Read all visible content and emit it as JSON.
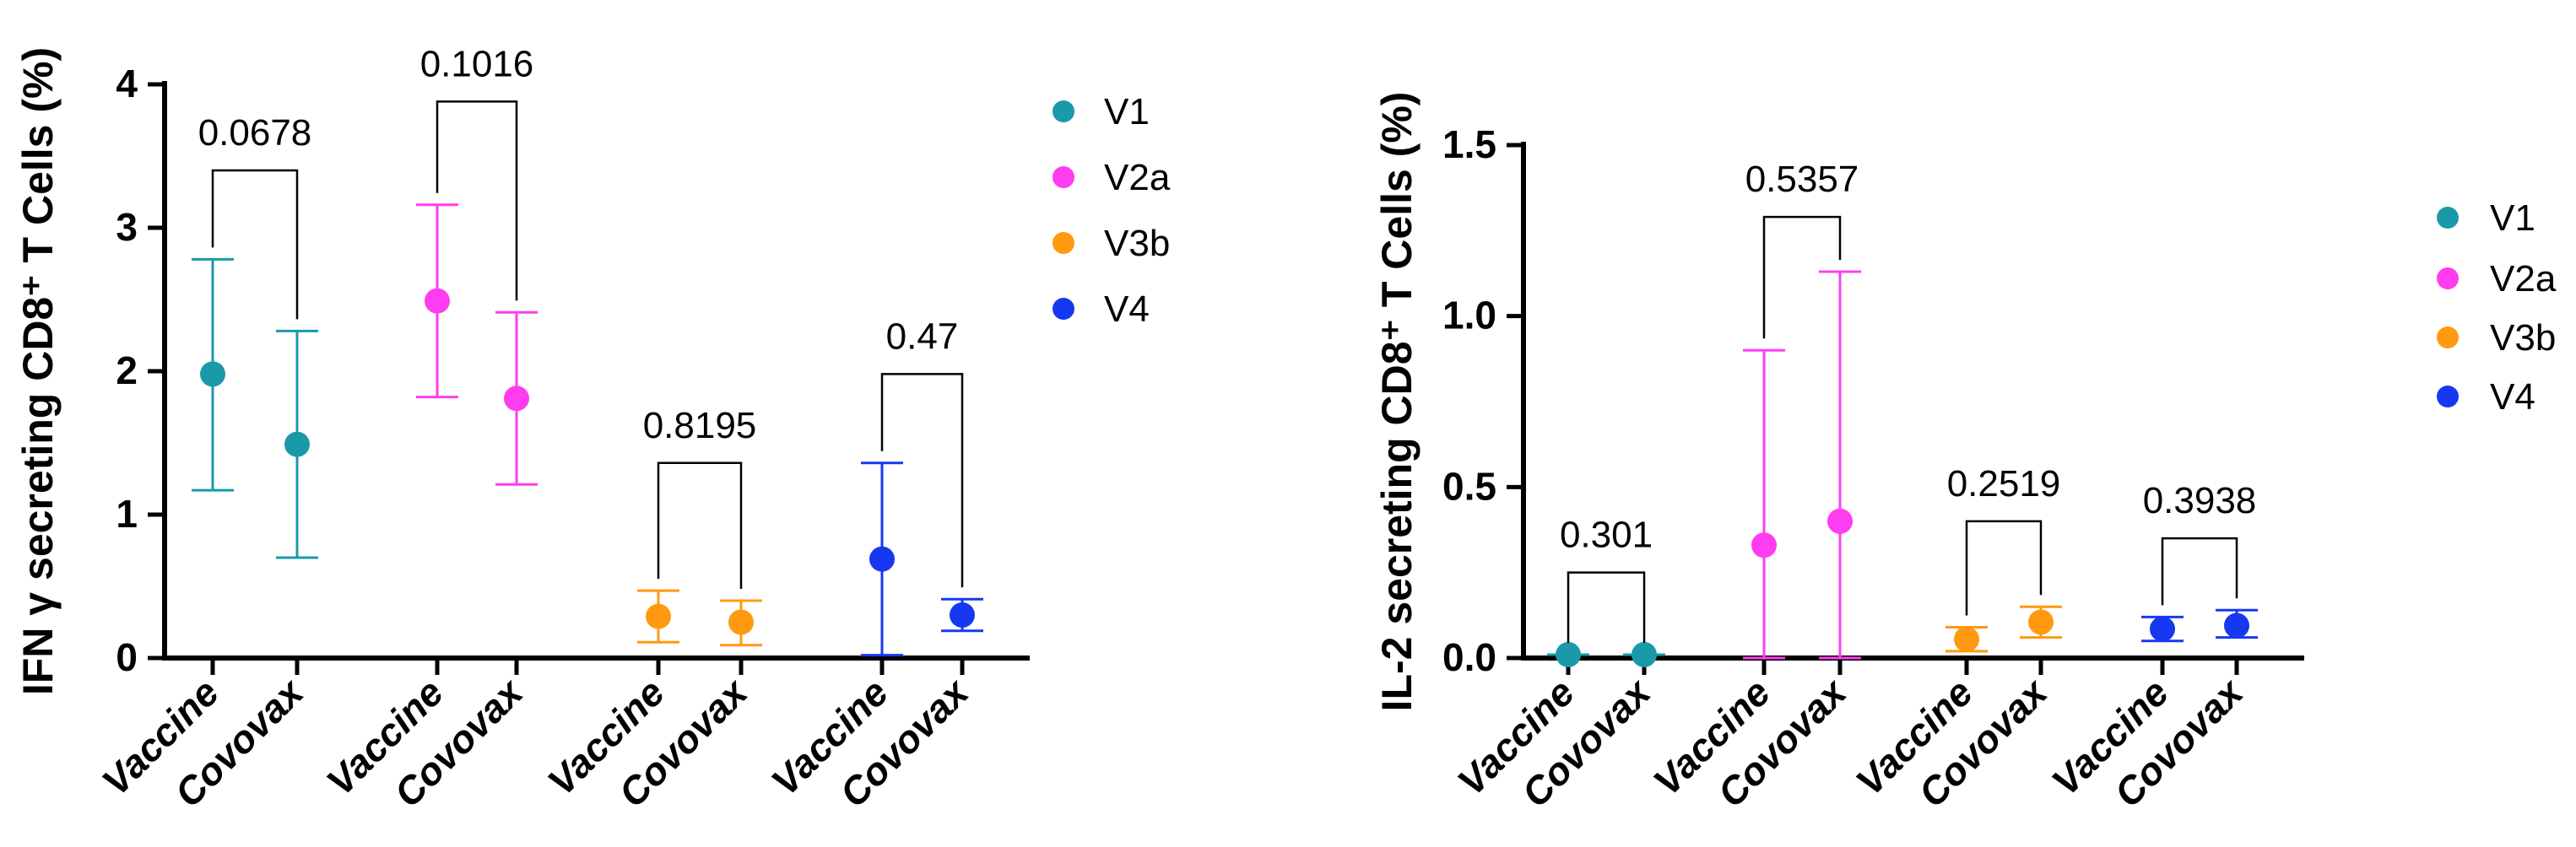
{
  "chart_data": [
    {
      "type": "scatter",
      "ylabel": "IFN γ secreting CD8⁺ T Cells (%)",
      "ylim": [
        0,
        4
      ],
      "yticks": [
        "0",
        "1",
        "2",
        "3",
        "4"
      ],
      "categories": [
        "Vaccine",
        "Covovax",
        "Vaccine",
        "Covovax",
        "Vaccine",
        "Covovax",
        "Vaccine",
        "Covovax"
      ],
      "legend": [
        {
          "label": "V1",
          "color": "#1a9aa8"
        },
        {
          "label": "V2a",
          "color": "#ff3cf0"
        },
        {
          "label": "V3b",
          "color": "#ff9a10"
        },
        {
          "label": "V4",
          "color": "#1638f0"
        }
      ],
      "series": [
        {
          "name": "V1",
          "color": "#1a9aa8",
          "points": [
            {
              "x": 0,
              "y": 1.98,
              "lo": 1.17,
              "hi": 2.78
            },
            {
              "x": 1,
              "y": 1.49,
              "lo": 0.7,
              "hi": 2.28
            }
          ],
          "pvalue": "0.0678",
          "bracket_y": 3.4
        },
        {
          "name": "V2a",
          "color": "#ff3cf0",
          "points": [
            {
              "x": 2,
              "y": 2.49,
              "lo": 1.82,
              "hi": 3.16
            },
            {
              "x": 3,
              "y": 1.81,
              "lo": 1.21,
              "hi": 2.41
            }
          ],
          "pvalue": "0.1016",
          "bracket_y": 3.88
        },
        {
          "name": "V3b",
          "color": "#ff9a10",
          "points": [
            {
              "x": 4,
              "y": 0.29,
              "lo": 0.11,
              "hi": 0.47
            },
            {
              "x": 5,
              "y": 0.25,
              "lo": 0.09,
              "hi": 0.4
            }
          ],
          "pvalue": "0.8195",
          "bracket_y": 1.36
        },
        {
          "name": "V4",
          "color": "#1638f0",
          "points": [
            {
              "x": 6,
              "y": 0.69,
              "lo": 0.02,
              "hi": 1.36
            },
            {
              "x": 7,
              "y": 0.3,
              "lo": 0.19,
              "hi": 0.41
            }
          ],
          "pvalue": "0.47",
          "bracket_y": 1.98
        }
      ]
    },
    {
      "type": "scatter",
      "ylabel": "IL-2 secreting CD8⁺ T Cells (%)",
      "ylim": [
        0,
        1.5
      ],
      "yticks": [
        "0.0",
        "0.5",
        "1.0",
        "1.5"
      ],
      "categories": [
        "Vaccine",
        "Covovax",
        "Vaccine",
        "Covovax",
        "Vaccine",
        "Covovax",
        "Vaccine",
        "Covovax"
      ],
      "legend": [
        {
          "label": "V1",
          "color": "#1a9aa8"
        },
        {
          "label": "V2a",
          "color": "#ff3cf0"
        },
        {
          "label": "V3b",
          "color": "#ff9a10"
        },
        {
          "label": "V4",
          "color": "#1638f0"
        }
      ],
      "series": [
        {
          "name": "V1",
          "color": "#1a9aa8",
          "points": [
            {
              "x": 0,
              "y": 0.01,
              "lo": 0.01,
              "hi": 0.01
            },
            {
              "x": 1,
              "y": 0.01,
              "lo": 0.01,
              "hi": 0.01
            }
          ],
          "pvalue": "0.301",
          "bracket_y": 0.25
        },
        {
          "name": "V2a",
          "color": "#ff3cf0",
          "points": [
            {
              "x": 2,
              "y": 0.33,
              "lo": 0.0,
              "hi": 0.9
            },
            {
              "x": 3,
              "y": 0.4,
              "lo": 0.0,
              "hi": 1.13
            }
          ],
          "pvalue": "0.5357",
          "bracket_y": 1.29
        },
        {
          "name": "V3b",
          "color": "#ff9a10",
          "points": [
            {
              "x": 4,
              "y": 0.055,
              "lo": 0.02,
              "hi": 0.09
            },
            {
              "x": 5,
              "y": 0.105,
              "lo": 0.06,
              "hi": 0.15
            }
          ],
          "pvalue": "0.2519",
          "bracket_y": 0.4
        },
        {
          "name": "V4",
          "color": "#1638f0",
          "points": [
            {
              "x": 6,
              "y": 0.085,
              "lo": 0.05,
              "hi": 0.12
            },
            {
              "x": 7,
              "y": 0.095,
              "lo": 0.06,
              "hi": 0.14
            }
          ],
          "pvalue": "0.3938",
          "bracket_y": 0.35
        }
      ]
    }
  ]
}
